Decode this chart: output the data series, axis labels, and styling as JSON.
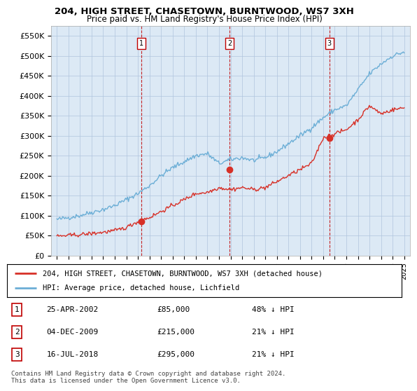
{
  "title": "204, HIGH STREET, CHASETOWN, BURNTWOOD, WS7 3XH",
  "subtitle": "Price paid vs. HM Land Registry's House Price Index (HPI)",
  "background_color": "#dce9f5",
  "plot_bg_color": "#dce9f5",
  "ylim": [
    0,
    575000
  ],
  "yticks": [
    0,
    50000,
    100000,
    150000,
    200000,
    250000,
    300000,
    350000,
    400000,
    450000,
    500000,
    550000
  ],
  "ytick_labels": [
    "£0",
    "£50K",
    "£100K",
    "£150K",
    "£200K",
    "£250K",
    "£300K",
    "£350K",
    "£400K",
    "£450K",
    "£500K",
    "£550K"
  ],
  "xlim_start": 1994.5,
  "xlim_end": 2025.5,
  "xticks": [
    1995,
    1996,
    1997,
    1998,
    1999,
    2000,
    2001,
    2002,
    2003,
    2004,
    2005,
    2006,
    2007,
    2008,
    2009,
    2010,
    2011,
    2012,
    2013,
    2014,
    2015,
    2016,
    2017,
    2018,
    2019,
    2020,
    2021,
    2022,
    2023,
    2024,
    2025
  ],
  "hpi_color": "#6baed6",
  "price_color": "#d73027",
  "marker_color": "#d73027",
  "vline_color": "#c00000",
  "grid_color": "#b0c4de",
  "transactions": [
    {
      "id": 1,
      "year": 2002.32,
      "price": 85000,
      "label": "1"
    },
    {
      "id": 2,
      "year": 2009.92,
      "price": 215000,
      "label": "2"
    },
    {
      "id": 3,
      "year": 2018.54,
      "price": 295000,
      "label": "3"
    }
  ],
  "hpi_base_years": [
    1995,
    1996,
    1997,
    1998,
    1999,
    2000,
    2001,
    2002,
    2003,
    2004,
    2005,
    2006,
    2007,
    2008,
    2009,
    2010,
    2011,
    2012,
    2013,
    2014,
    2015,
    2016,
    2017,
    2018,
    2019,
    2020,
    2021,
    2022,
    2023,
    2024,
    2025
  ],
  "hpi_base_vals": [
    90000,
    95000,
    100000,
    108000,
    115000,
    125000,
    140000,
    155000,
    175000,
    200000,
    220000,
    235000,
    250000,
    255000,
    230000,
    240000,
    245000,
    238000,
    245000,
    260000,
    280000,
    300000,
    320000,
    345000,
    365000,
    375000,
    415000,
    455000,
    480000,
    500000,
    510000
  ],
  "price_base_years": [
    1995,
    1996,
    1997,
    1998,
    1999,
    2000,
    2001,
    2002,
    2003,
    2004,
    2005,
    2006,
    2007,
    2008,
    2009,
    2010,
    2011,
    2012,
    2013,
    2014,
    2015,
    2016,
    2017,
    2018,
    2019,
    2020,
    2021,
    2022,
    2023,
    2024,
    2025
  ],
  "price_base_vals": [
    48000,
    50000,
    52000,
    55000,
    58000,
    62000,
    70000,
    85000,
    95000,
    110000,
    125000,
    140000,
    155000,
    158000,
    170000,
    165000,
    170000,
    165000,
    170000,
    185000,
    200000,
    215000,
    230000,
    295000,
    305000,
    315000,
    340000,
    375000,
    355000,
    365000,
    370000
  ],
  "table_rows": [
    {
      "num": "1",
      "date": "25-APR-2002",
      "price": "£85,000",
      "note": "48% ↓ HPI"
    },
    {
      "num": "2",
      "date": "04-DEC-2009",
      "price": "£215,000",
      "note": "21% ↓ HPI"
    },
    {
      "num": "3",
      "date": "16-JUL-2018",
      "price": "£295,000",
      "note": "21% ↓ HPI"
    }
  ],
  "legend_line1": "204, HIGH STREET, CHASETOWN, BURNTWOOD, WS7 3XH (detached house)",
  "legend_line2": "HPI: Average price, detached house, Lichfield",
  "footer": "Contains HM Land Registry data © Crown copyright and database right 2024.\nThis data is licensed under the Open Government Licence v3.0."
}
